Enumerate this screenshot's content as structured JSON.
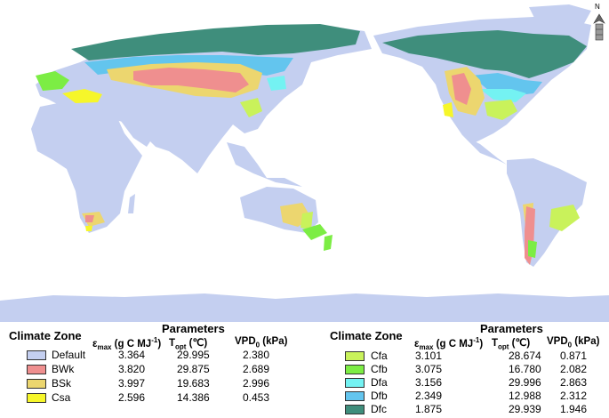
{
  "colors": {
    "ocean": "#ffffff",
    "Default": "#c4cff0",
    "BWk": "#ef8f8f",
    "BSk": "#ecd66f",
    "Csa": "#f6f62a",
    "Cfa": "#c9f25b",
    "Cfb": "#7ced44",
    "Dfa": "#74f2f2",
    "Dfb": "#63c5ee",
    "Dfc": "#3f8e7c"
  },
  "map": {
    "north_arrow_label": "N"
  },
  "legend": {
    "zone_header": "Climate Zone",
    "params_header": "Parameters",
    "col_eps": "ε",
    "col_eps_sub": "max",
    "col_eps_unit": " (g C MJ",
    "col_eps_sup": "-1",
    "col_eps_close": ")",
    "col_topt": "T",
    "col_topt_sub": "opt",
    "col_topt_unit": " (℃)",
    "col_vpd": "VPD",
    "col_vpd_sub": "0",
    "col_vpd_unit": " (kPa)",
    "left": [
      {
        "zone": "Default",
        "eps": "3.364",
        "topt": "29.995",
        "vpd": "2.380"
      },
      {
        "zone": "BWk",
        "eps": "3.820",
        "topt": "29.875",
        "vpd": "2.689"
      },
      {
        "zone": "BSk",
        "eps": "3.997",
        "topt": "19.683",
        "vpd": "2.996"
      },
      {
        "zone": "Csa",
        "eps": "2.596",
        "topt": "14.386",
        "vpd": "0.453"
      }
    ],
    "right": [
      {
        "zone": "Cfa",
        "eps": "3.101",
        "topt": "28.674",
        "vpd": "0.871"
      },
      {
        "zone": "Cfb",
        "eps": "3.075",
        "topt": "16.780",
        "vpd": "2.082"
      },
      {
        "zone": "Dfa",
        "eps": "3.156",
        "topt": "29.996",
        "vpd": "2.863"
      },
      {
        "zone": "Dfb",
        "eps": "2.349",
        "topt": "12.988",
        "vpd": "2.312"
      },
      {
        "zone": "Dfc",
        "eps": "1.875",
        "topt": "29.939",
        "vpd": "1.946"
      }
    ]
  }
}
